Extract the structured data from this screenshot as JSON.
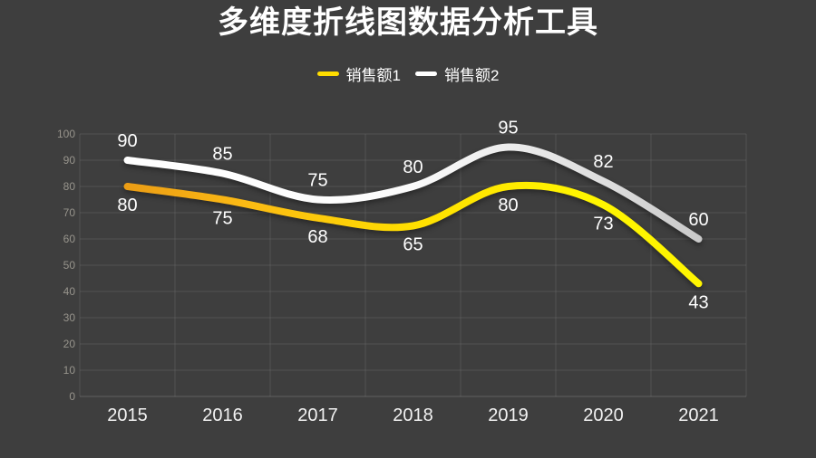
{
  "page": {
    "background": "#3e3e3e"
  },
  "header": {
    "title": "多维度折线图数据分析工具"
  },
  "legend": {
    "items": [
      {
        "label": "销售额1",
        "color": "#ffdd00"
      },
      {
        "label": "销售额2",
        "color": "#ffffff"
      }
    ]
  },
  "chart_data": {
    "type": "line",
    "title": "多维度折线图数据分析工具",
    "categories": [
      "2015",
      "2016",
      "2017",
      "2018",
      "2019",
      "2020",
      "2021"
    ],
    "series": [
      {
        "name": "销售额1",
        "values": [
          80,
          75,
          68,
          65,
          80,
          73,
          43
        ],
        "gradient": [
          "#eb9d15",
          "#fbb914",
          "#ffdf00",
          "#fff500",
          "#fff500"
        ],
        "gradient_offsets": [
          0,
          0.2,
          0.5,
          0.8,
          1
        ],
        "label_side": "below"
      },
      {
        "name": "销售额2",
        "values": [
          90,
          85,
          75,
          80,
          95,
          82,
          60
        ],
        "gradient": [
          "#ffffff",
          "#fbfbfb",
          "#dcdcdc",
          "#c9c9c9"
        ],
        "gradient_offsets": [
          0,
          0.5,
          0.85,
          1
        ],
        "label_side": "above"
      }
    ],
    "xlabel": "",
    "ylabel": "",
    "ylim": [
      0,
      100
    ],
    "y_tick_step": 10,
    "grid": true,
    "smooth": true,
    "legend_position": "top-center"
  },
  "theme": {
    "background": "#3e3e3e",
    "grid_line": "rgba(255,255,255,0.10)",
    "axis_line": "rgba(255,255,255,0.18)",
    "y_tick_color": "#97948c",
    "x_tick_color": "#f2f2f2",
    "data_label_color": "#ffffff",
    "title_color": "#ffffff",
    "legend_text_color": "#ffffff"
  }
}
